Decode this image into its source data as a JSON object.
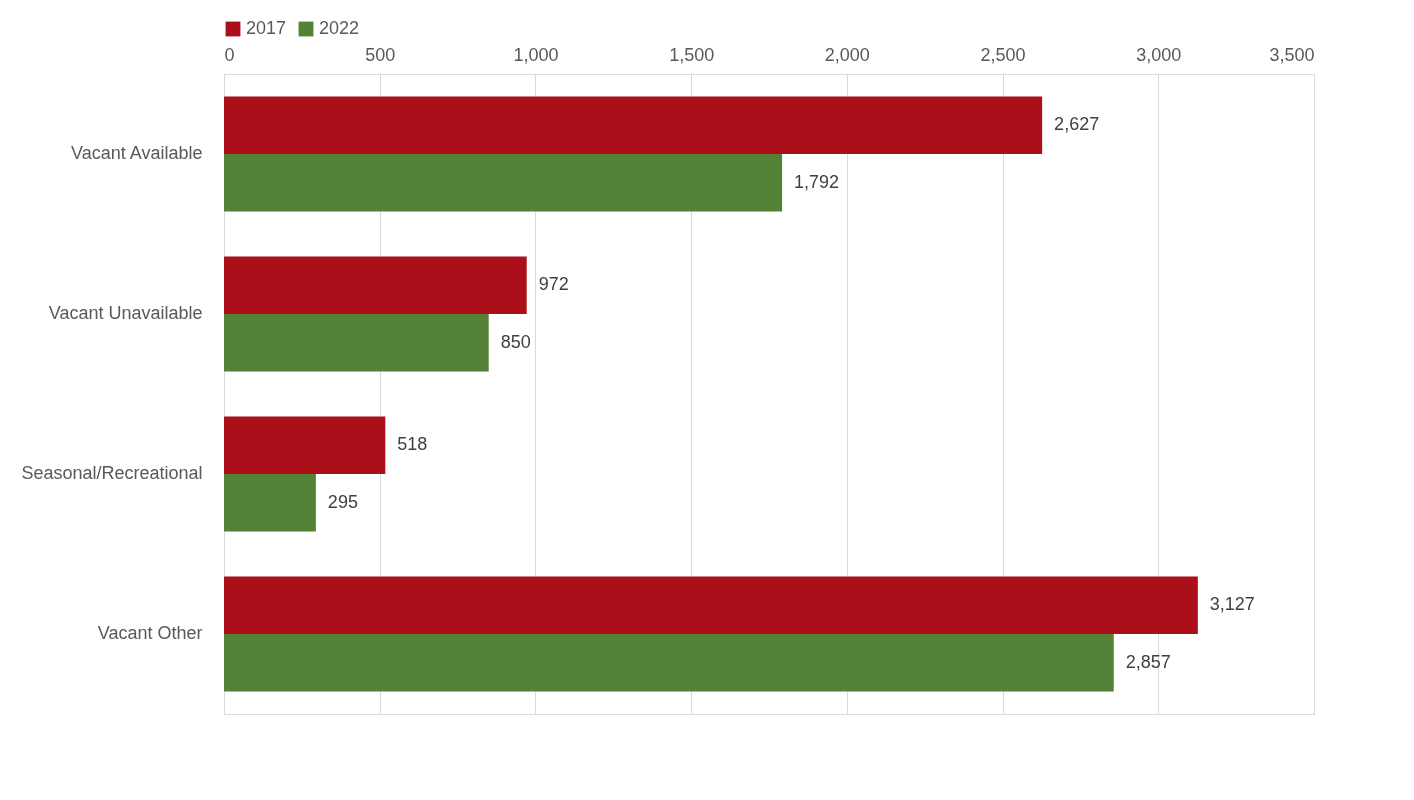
{
  "chart_data": {
    "type": "bar",
    "orientation": "horizontal",
    "categories": [
      "Vacant Available",
      "Vacant Unavailable",
      "Seasonal/Recreational",
      "Vacant Other"
    ],
    "series": [
      {
        "name": "2017",
        "color": "#ab0f1a",
        "values": [
          2627,
          972,
          518,
          3127
        ],
        "value_labels": [
          "2,627",
          "972",
          "518",
          "3,127"
        ]
      },
      {
        "name": "2022",
        "color": "#538135",
        "values": [
          1792,
          850,
          295,
          2857
        ],
        "value_labels": [
          "1,792",
          "850",
          "295",
          "2,857"
        ]
      }
    ],
    "xlim": [
      0,
      3500
    ],
    "xticks": [
      0,
      500,
      {
        "value": 1000,
        "label": "1,000"
      },
      {
        "value": 1500,
        "label": "1,500"
      },
      {
        "value": 2000,
        "label": "2,000"
      },
      {
        "value": 2500,
        "label": "2,500"
      },
      {
        "value": 3000,
        "label": "3,000"
      },
      {
        "value": 3500,
        "label": "3,500"
      }
    ],
    "grid": "x",
    "legend": "top"
  }
}
